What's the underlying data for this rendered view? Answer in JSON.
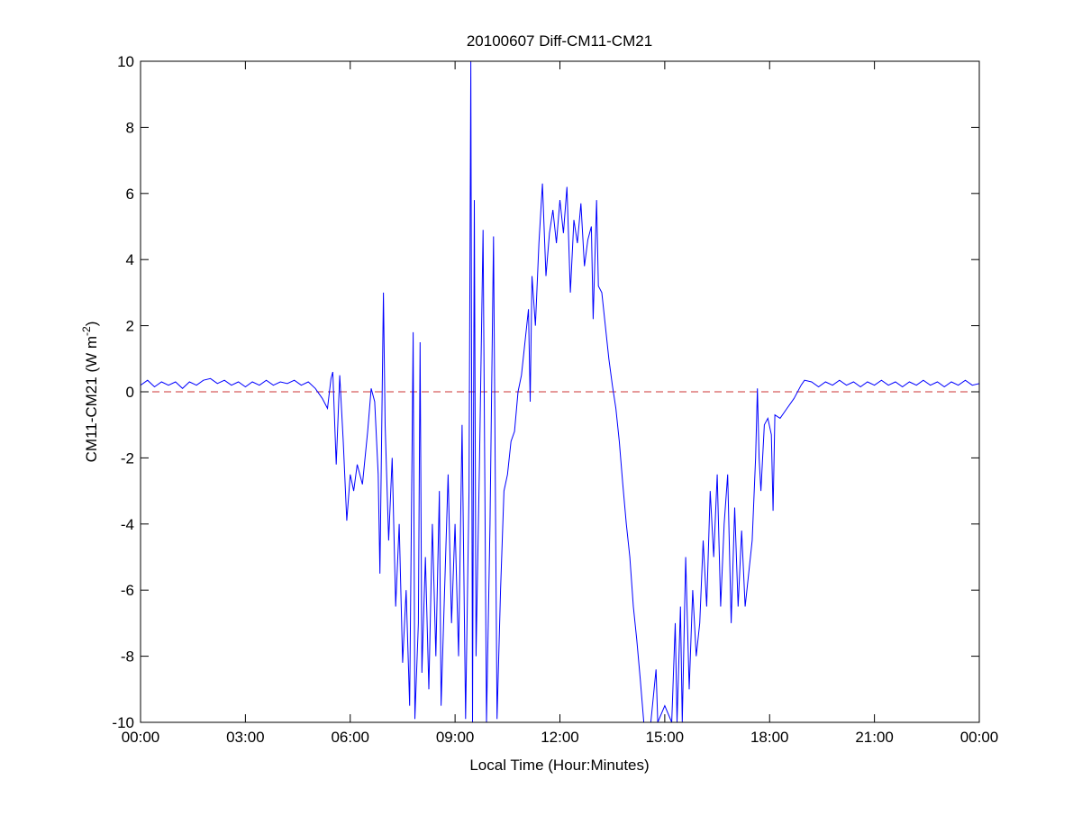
{
  "chart_data": {
    "type": "line",
    "title": "20100607 Diff-CM11-CM21",
    "xlabel": "Local Time (Hour:Minutes)",
    "ylabel_main": "CM11-CM21 (W m",
    "ylabel_sup": "-2",
    "ylabel_end": ")",
    "xlim": [
      0,
      24
    ],
    "ylim": [
      -10,
      10
    ],
    "xticks": [
      0,
      3,
      6,
      9,
      12,
      15,
      18,
      21,
      24
    ],
    "xtick_labels": [
      "00:00",
      "03:00",
      "06:00",
      "09:00",
      "12:00",
      "15:00",
      "18:00",
      "21:00",
      "00:00"
    ],
    "yticks": [
      -10,
      -8,
      -6,
      -4,
      -2,
      0,
      2,
      4,
      6,
      8,
      10
    ],
    "ytick_labels": [
      "-10",
      "-8",
      "-6",
      "-4",
      "-2",
      "0",
      "2",
      "4",
      "6",
      "8",
      "10"
    ],
    "grid": false,
    "series_color": "#0000ff",
    "reference_line": {
      "y": 0,
      "color": "#cc3333",
      "style": "dashed"
    },
    "x_units": "hours",
    "points": [
      [
        0,
        0.2
      ],
      [
        0.2,
        0.35
      ],
      [
        0.4,
        0.15
      ],
      [
        0.6,
        0.3
      ],
      [
        0.8,
        0.2
      ],
      [
        1.0,
        0.3
      ],
      [
        1.2,
        0.1
      ],
      [
        1.4,
        0.3
      ],
      [
        1.6,
        0.2
      ],
      [
        1.8,
        0.35
      ],
      [
        2.0,
        0.4
      ],
      [
        2.2,
        0.25
      ],
      [
        2.4,
        0.35
      ],
      [
        2.6,
        0.2
      ],
      [
        2.8,
        0.3
      ],
      [
        3.0,
        0.15
      ],
      [
        3.2,
        0.3
      ],
      [
        3.4,
        0.2
      ],
      [
        3.6,
        0.35
      ],
      [
        3.8,
        0.2
      ],
      [
        4.0,
        0.3
      ],
      [
        4.2,
        0.25
      ],
      [
        4.4,
        0.35
      ],
      [
        4.6,
        0.2
      ],
      [
        4.8,
        0.3
      ],
      [
        5.0,
        0.1
      ],
      [
        5.2,
        -0.2
      ],
      [
        5.35,
        -0.5
      ],
      [
        5.45,
        0.4
      ],
      [
        5.5,
        0.6
      ],
      [
        5.6,
        -2.2
      ],
      [
        5.7,
        0.5
      ],
      [
        5.8,
        -1.5
      ],
      [
        5.9,
        -3.9
      ],
      [
        6.0,
        -2.5
      ],
      [
        6.1,
        -3.0
      ],
      [
        6.2,
        -2.2
      ],
      [
        6.35,
        -2.8
      ],
      [
        6.5,
        -1.2
      ],
      [
        6.6,
        0.1
      ],
      [
        6.7,
        -0.3
      ],
      [
        6.8,
        -2.5
      ],
      [
        6.85,
        -5.5
      ],
      [
        6.95,
        3.0
      ],
      [
        7.0,
        -1.0
      ],
      [
        7.1,
        -4.5
      ],
      [
        7.2,
        -2.0
      ],
      [
        7.3,
        -6.5
      ],
      [
        7.4,
        -4.0
      ],
      [
        7.5,
        -8.2
      ],
      [
        7.6,
        -6.0
      ],
      [
        7.7,
        -9.5
      ],
      [
        7.8,
        1.8
      ],
      [
        7.85,
        -9.9
      ],
      [
        7.95,
        -7.0
      ],
      [
        8.0,
        1.5
      ],
      [
        8.05,
        -8.5
      ],
      [
        8.15,
        -5.0
      ],
      [
        8.25,
        -9.0
      ],
      [
        8.35,
        -4.0
      ],
      [
        8.45,
        -8.0
      ],
      [
        8.55,
        -3.0
      ],
      [
        8.6,
        -9.5
      ],
      [
        8.7,
        -6.0
      ],
      [
        8.8,
        -2.5
      ],
      [
        8.9,
        -7.0
      ],
      [
        9.0,
        -4.0
      ],
      [
        9.1,
        -8.0
      ],
      [
        9.2,
        -1.0
      ],
      [
        9.3,
        -9.9
      ],
      [
        9.4,
        -3.0
      ],
      [
        9.45,
        10.0
      ],
      [
        9.5,
        -10.0
      ],
      [
        9.55,
        5.8
      ],
      [
        9.6,
        -8.0
      ],
      [
        9.7,
        -2.0
      ],
      [
        9.8,
        4.9
      ],
      [
        9.9,
        -10.0
      ],
      [
        10.0,
        -4.0
      ],
      [
        10.1,
        4.7
      ],
      [
        10.2,
        -9.9
      ],
      [
        10.3,
        -6.0
      ],
      [
        10.4,
        -3.0
      ],
      [
        10.5,
        -2.5
      ],
      [
        10.6,
        -1.5
      ],
      [
        10.7,
        -1.2
      ],
      [
        10.8,
        0.0
      ],
      [
        10.9,
        0.5
      ],
      [
        11.0,
        1.5
      ],
      [
        11.1,
        2.5
      ],
      [
        11.15,
        -0.3
      ],
      [
        11.2,
        3.5
      ],
      [
        11.3,
        2.0
      ],
      [
        11.4,
        4.5
      ],
      [
        11.5,
        6.3
      ],
      [
        11.6,
        3.5
      ],
      [
        11.7,
        4.8
      ],
      [
        11.8,
        5.5
      ],
      [
        11.9,
        4.5
      ],
      [
        12.0,
        5.8
      ],
      [
        12.1,
        4.8
      ],
      [
        12.2,
        6.2
      ],
      [
        12.3,
        3.0
      ],
      [
        12.4,
        5.2
      ],
      [
        12.5,
        4.5
      ],
      [
        12.6,
        5.7
      ],
      [
        12.7,
        3.8
      ],
      [
        12.8,
        4.6
      ],
      [
        12.9,
        5.0
      ],
      [
        12.95,
        2.2
      ],
      [
        13.05,
        5.8
      ],
      [
        13.1,
        3.2
      ],
      [
        13.2,
        3.0
      ],
      [
        13.3,
        2.0
      ],
      [
        13.4,
        1.0
      ],
      [
        13.5,
        0.2
      ],
      [
        13.6,
        -0.5
      ],
      [
        13.7,
        -1.5
      ],
      [
        13.8,
        -2.8
      ],
      [
        13.9,
        -4.0
      ],
      [
        14.0,
        -5.0
      ],
      [
        14.1,
        -6.5
      ],
      [
        14.2,
        -7.5
      ],
      [
        14.3,
        -8.7
      ],
      [
        14.4,
        -10.0
      ],
      [
        14.6,
        -10.0
      ],
      [
        14.75,
        -8.4
      ],
      [
        14.8,
        -10.0
      ],
      [
        15.0,
        -9.5
      ],
      [
        15.2,
        -10.0
      ],
      [
        15.3,
        -7.0
      ],
      [
        15.35,
        -10.0
      ],
      [
        15.45,
        -6.5
      ],
      [
        15.5,
        -10.0
      ],
      [
        15.6,
        -5.0
      ],
      [
        15.7,
        -9.0
      ],
      [
        15.8,
        -6.0
      ],
      [
        15.9,
        -8.0
      ],
      [
        16.0,
        -7.0
      ],
      [
        16.1,
        -4.5
      ],
      [
        16.2,
        -6.5
      ],
      [
        16.3,
        -3.0
      ],
      [
        16.4,
        -5.0
      ],
      [
        16.5,
        -2.5
      ],
      [
        16.6,
        -6.5
      ],
      [
        16.7,
        -4.0
      ],
      [
        16.8,
        -2.5
      ],
      [
        16.9,
        -7.0
      ],
      [
        17.0,
        -3.5
      ],
      [
        17.1,
        -6.5
      ],
      [
        17.2,
        -4.2
      ],
      [
        17.3,
        -6.5
      ],
      [
        17.4,
        -5.5
      ],
      [
        17.5,
        -4.5
      ],
      [
        17.6,
        -2.0
      ],
      [
        17.65,
        0.1
      ],
      [
        17.7,
        -2.0
      ],
      [
        17.75,
        -3.0
      ],
      [
        17.85,
        -1.0
      ],
      [
        17.95,
        -0.8
      ],
      [
        18.05,
        -1.3
      ],
      [
        18.1,
        -3.6
      ],
      [
        18.15,
        -0.7
      ],
      [
        18.3,
        -0.8
      ],
      [
        18.5,
        -0.5
      ],
      [
        18.7,
        -0.2
      ],
      [
        18.9,
        0.2
      ],
      [
        19.0,
        0.35
      ],
      [
        19.2,
        0.3
      ],
      [
        19.4,
        0.15
      ],
      [
        19.6,
        0.3
      ],
      [
        19.8,
        0.2
      ],
      [
        20.0,
        0.35
      ],
      [
        20.2,
        0.2
      ],
      [
        20.4,
        0.3
      ],
      [
        20.6,
        0.15
      ],
      [
        20.8,
        0.3
      ],
      [
        21.0,
        0.2
      ],
      [
        21.2,
        0.35
      ],
      [
        21.4,
        0.2
      ],
      [
        21.6,
        0.3
      ],
      [
        21.8,
        0.15
      ],
      [
        22.0,
        0.3
      ],
      [
        22.2,
        0.2
      ],
      [
        22.4,
        0.35
      ],
      [
        22.6,
        0.2
      ],
      [
        22.8,
        0.3
      ],
      [
        23.0,
        0.15
      ],
      [
        23.2,
        0.3
      ],
      [
        23.4,
        0.2
      ],
      [
        23.6,
        0.35
      ],
      [
        23.8,
        0.2
      ],
      [
        24.0,
        0.25
      ]
    ]
  }
}
